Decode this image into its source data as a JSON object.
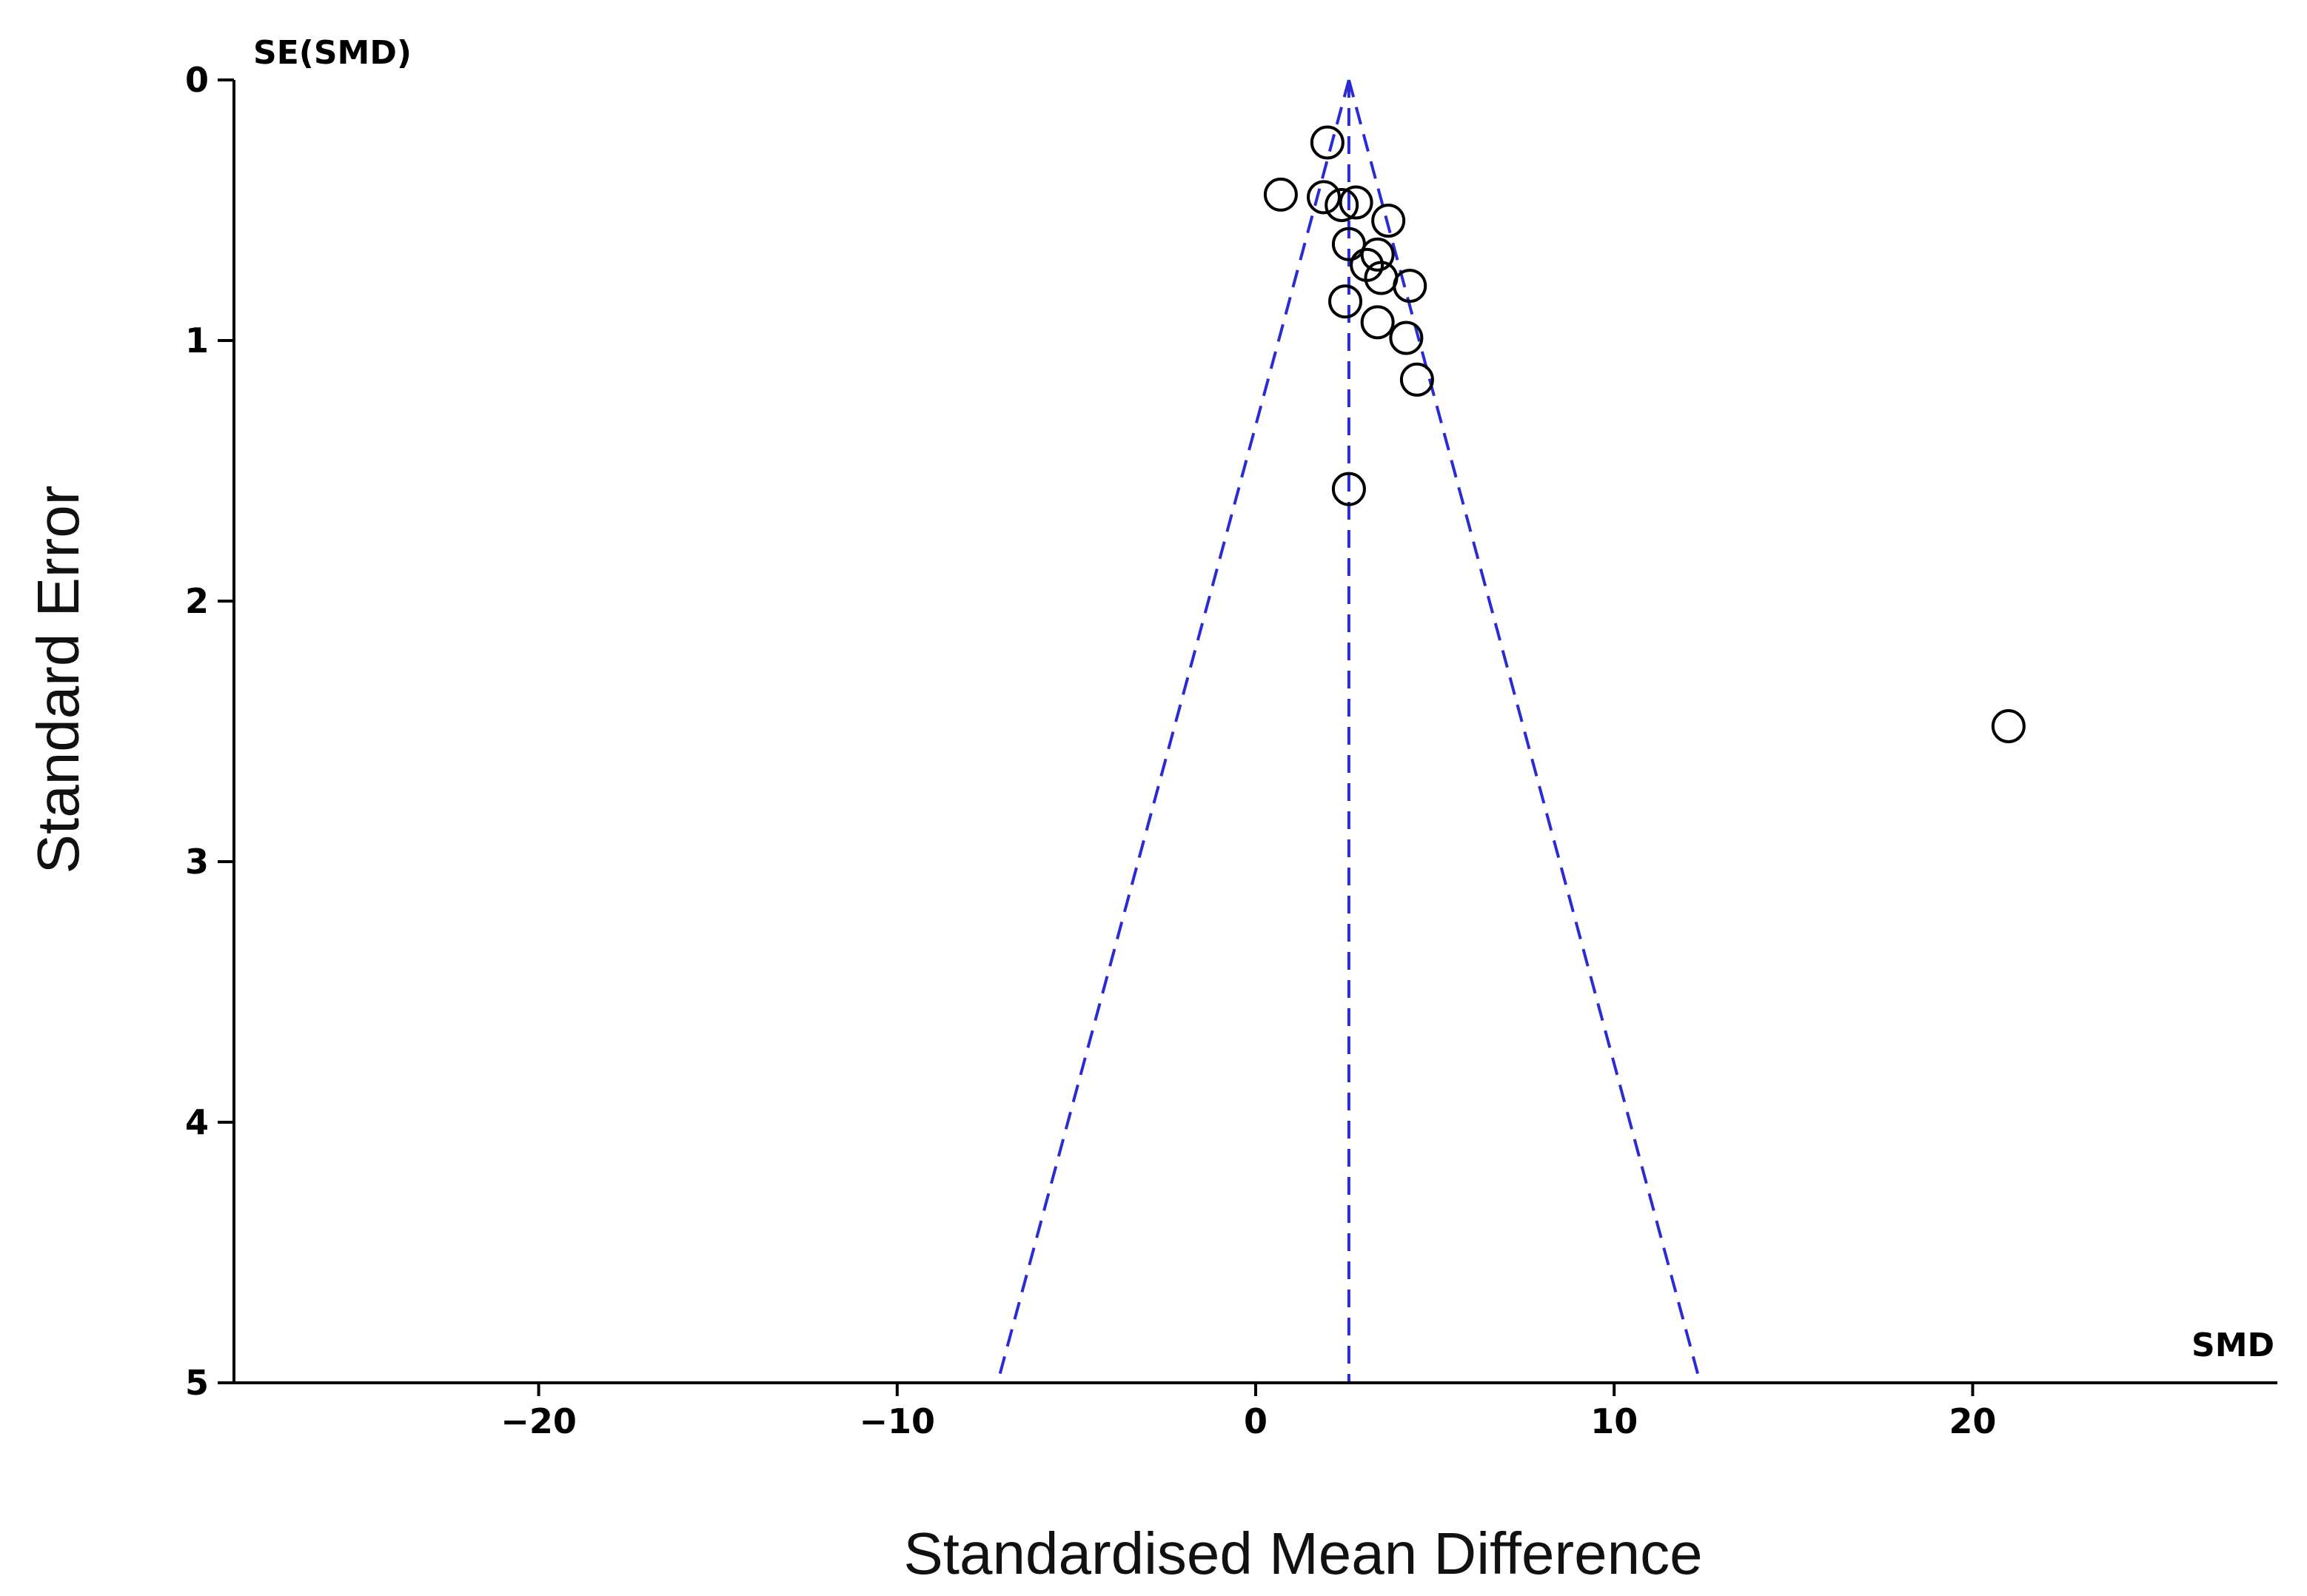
{
  "chart_data": {
    "type": "scatter",
    "title": "",
    "xlabel": "Standardised Mean Difference",
    "ylabel": "Standard Error",
    "x_axis_corner_label": "SMD",
    "y_axis_corner_label": "SE(SMD)",
    "xlim": [
      -28.5,
      28.5
    ],
    "ylim": [
      0,
      5
    ],
    "y_inverted": true,
    "x_ticks": [
      -20,
      -10,
      0,
      10,
      20
    ],
    "x_tick_labels": [
      "−20",
      "−10",
      "0",
      "10",
      "20"
    ],
    "y_ticks": [
      0,
      1,
      2,
      3,
      4,
      5
    ],
    "y_tick_labels": [
      "0",
      "1",
      "2",
      "3",
      "4",
      "5"
    ],
    "grid": false,
    "pooled_estimate": 2.6,
    "funnel": {
      "apex_x": 2.6,
      "apex_se": 0,
      "base_left_x": -7.2,
      "base_right_x": 12.4,
      "base_se": 5,
      "color": "#2b2bd6"
    },
    "marker_color": "#000000",
    "points": [
      {
        "x": 2.0,
        "y": 0.24
      },
      {
        "x": 0.7,
        "y": 0.44
      },
      {
        "x": 1.9,
        "y": 0.45
      },
      {
        "x": 2.4,
        "y": 0.48
      },
      {
        "x": 2.8,
        "y": 0.47
      },
      {
        "x": 3.7,
        "y": 0.54
      },
      {
        "x": 2.6,
        "y": 0.63
      },
      {
        "x": 3.4,
        "y": 0.67
      },
      {
        "x": 3.1,
        "y": 0.71
      },
      {
        "x": 3.5,
        "y": 0.76
      },
      {
        "x": 4.3,
        "y": 0.79
      },
      {
        "x": 2.5,
        "y": 0.85
      },
      {
        "x": 3.4,
        "y": 0.93
      },
      {
        "x": 4.2,
        "y": 0.99
      },
      {
        "x": 4.5,
        "y": 1.15
      },
      {
        "x": 2.6,
        "y": 1.57
      },
      {
        "x": 21.0,
        "y": 2.48
      }
    ]
  }
}
